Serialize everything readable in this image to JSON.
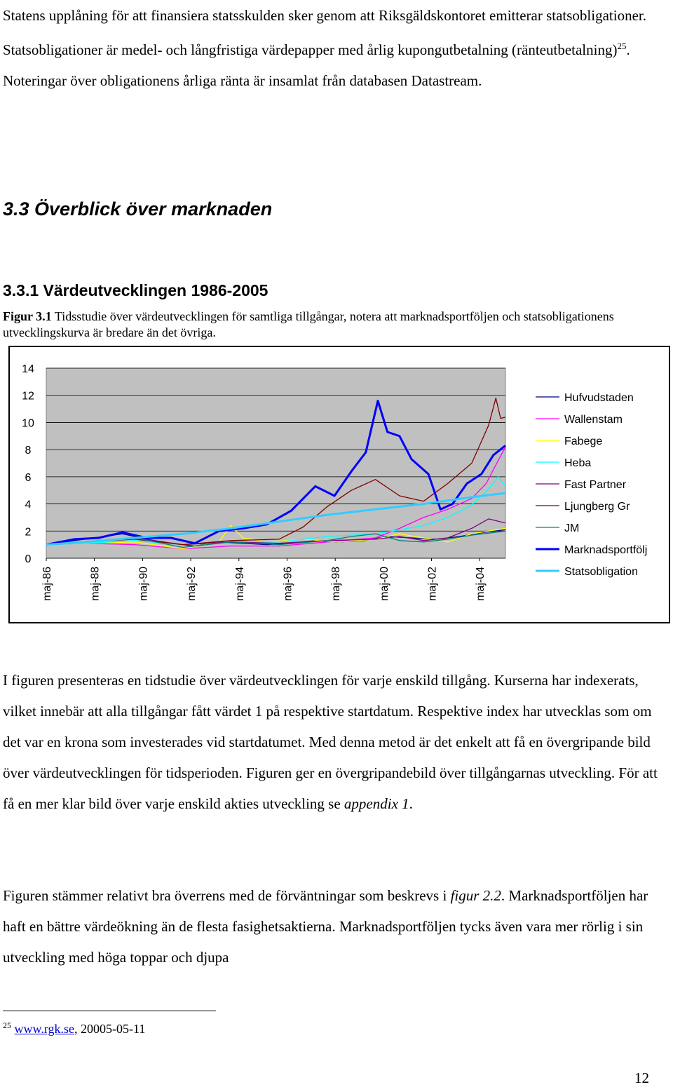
{
  "intro": {
    "text_before_sup": "Statens upplåning för att finansiera statsskulden sker genom att Riksgäldskontoret emitterar statsobligationer. Statsobligationer är medel- och långfristiga värdepapper med årlig kupongutbetalning (ränteutbetalning)",
    "sup": "25",
    "text_after_sup": ". Noteringar över obligationens årliga ränta är insamlat från databasen Datastream."
  },
  "section_heading": "3.3 Överblick över marknaden",
  "subsection_heading": "3.3.1 Värdeutvecklingen 1986-2005",
  "figure": {
    "label": "Figur 3.1",
    "caption": " Tidsstudie över värdeutvecklingen för samtliga tillgångar, notera att marknadsportföljen och statsobligationens utvecklingskurva är bredare än det övriga."
  },
  "chart_data": {
    "type": "line",
    "x_tick_labels": [
      "maj-86",
      "maj-88",
      "maj-90",
      "maj-92",
      "maj-94",
      "maj-96",
      "maj-98",
      "maj-00",
      "maj-02",
      "maj-04"
    ],
    "x_start_year": 1986.33,
    "x_end_year": 2005.4,
    "ylim": [
      0,
      14
    ],
    "y_ticks": [
      0,
      2,
      4,
      6,
      8,
      10,
      12,
      14
    ],
    "plot_background": "#c0c0c0",
    "grid": true,
    "legend_position": "right",
    "series": [
      {
        "name": "Hufvudstaden",
        "color": "#000080",
        "width": 1.3,
        "points": [
          [
            1986.33,
            1
          ],
          [
            1987.5,
            1.3
          ],
          [
            1988.3,
            1.5
          ],
          [
            1989.5,
            1.8
          ],
          [
            1990.5,
            1.4
          ],
          [
            1991.5,
            1.1
          ],
          [
            1992.5,
            0.9
          ],
          [
            1993.5,
            1.2
          ],
          [
            1994.5,
            1.1
          ],
          [
            1995.5,
            1.0
          ],
          [
            1996.5,
            1.1
          ],
          [
            1997.5,
            1.3
          ],
          [
            1998.5,
            1.2
          ],
          [
            1999.5,
            1.3
          ],
          [
            2000.5,
            1.6
          ],
          [
            2001.5,
            1.5
          ],
          [
            2002.5,
            1.4
          ],
          [
            2003.5,
            1.6
          ],
          [
            2004.5,
            1.9
          ],
          [
            2005.4,
            2.1
          ]
        ]
      },
      {
        "name": "Wallenstam",
        "color": "#ff00ff",
        "width": 1.3,
        "points": [
          [
            1986.33,
            1
          ],
          [
            1988,
            1.1
          ],
          [
            1990,
            1.0
          ],
          [
            1992,
            0.7
          ],
          [
            1994,
            0.9
          ],
          [
            1996,
            0.9
          ],
          [
            1998,
            1.2
          ],
          [
            2000,
            1.5
          ],
          [
            2001,
            2.2
          ],
          [
            2002,
            3.0
          ],
          [
            2003,
            3.6
          ],
          [
            2004,
            4.4
          ],
          [
            2004.6,
            5.5
          ],
          [
            2005.1,
            7.2
          ],
          [
            2005.4,
            8.2
          ]
        ]
      },
      {
        "name": "Fabege",
        "color": "#ffff00",
        "width": 1.3,
        "points": [
          [
            1986.33,
            1
          ],
          [
            1988,
            1.1
          ],
          [
            1990,
            1.2
          ],
          [
            1992,
            0.7
          ],
          [
            1993.5,
            1.2
          ],
          [
            1994,
            2.4
          ],
          [
            1994.5,
            1.5
          ],
          [
            1995.5,
            1.2
          ],
          [
            1997,
            1.4
          ],
          [
            1998.5,
            1.2
          ],
          [
            2000,
            1.4
          ],
          [
            2001,
            1.8
          ],
          [
            2002,
            1.5
          ],
          [
            2003,
            1.2
          ],
          [
            2004,
            1.8
          ],
          [
            2005.4,
            2.2
          ]
        ]
      },
      {
        "name": "Heba",
        "color": "#00ffff",
        "width": 1.3,
        "points": [
          [
            1986.33,
            1
          ],
          [
            1988,
            1.1
          ],
          [
            1990,
            1.3
          ],
          [
            1992,
            1.0
          ],
          [
            1994,
            1.2
          ],
          [
            1996,
            1.2
          ],
          [
            1998,
            1.6
          ],
          [
            2000,
            1.8
          ],
          [
            2001,
            2.1
          ],
          [
            2002,
            2.4
          ],
          [
            2003,
            3.0
          ],
          [
            2004,
            3.9
          ],
          [
            2004.7,
            5.1
          ],
          [
            2005.1,
            6.0
          ],
          [
            2005.4,
            5.3
          ]
        ]
      },
      {
        "name": "Fast Partner",
        "color": "#800080",
        "width": 1.3,
        "points": [
          [
            1986.33,
            1
          ],
          [
            1988,
            1.2
          ],
          [
            1990,
            1.5
          ],
          [
            1992,
            1.0
          ],
          [
            1994,
            1.2
          ],
          [
            1996,
            1.1
          ],
          [
            1998,
            1.3
          ],
          [
            2000,
            1.4
          ],
          [
            2001,
            1.6
          ],
          [
            2002,
            1.3
          ],
          [
            2003,
            1.5
          ],
          [
            2004,
            2.2
          ],
          [
            2004.7,
            2.9
          ],
          [
            2005.4,
            2.6
          ]
        ]
      },
      {
        "name": "Ljungberg Gr",
        "color": "#800000",
        "width": 1.3,
        "points": [
          [
            1986.33,
            1
          ],
          [
            1988,
            1.2
          ],
          [
            1990,
            1.4
          ],
          [
            1992,
            1.0
          ],
          [
            1994,
            1.3
          ],
          [
            1996,
            1.4
          ],
          [
            1997,
            2.3
          ],
          [
            1998,
            3.8
          ],
          [
            1999,
            5.0
          ],
          [
            2000,
            5.8
          ],
          [
            2001,
            4.6
          ],
          [
            2002,
            4.2
          ],
          [
            2003,
            5.5
          ],
          [
            2004,
            7.0
          ],
          [
            2004.7,
            9.8
          ],
          [
            2005.0,
            11.8
          ],
          [
            2005.2,
            10.3
          ],
          [
            2005.4,
            10.4
          ]
        ]
      },
      {
        "name": "JM",
        "color": "#008080",
        "width": 1.3,
        "points": [
          [
            1986.33,
            1
          ],
          [
            1988,
            1.2
          ],
          [
            1990,
            1.5
          ],
          [
            1992,
            0.8
          ],
          [
            1994,
            1.2
          ],
          [
            1996,
            1.0
          ],
          [
            1998,
            1.3
          ],
          [
            1999,
            1.6
          ],
          [
            2000,
            1.8
          ],
          [
            2001,
            1.3
          ],
          [
            2002,
            1.2
          ],
          [
            2003,
            1.4
          ],
          [
            2004,
            1.7
          ],
          [
            2005.4,
            2.0
          ]
        ]
      },
      {
        "name": "Marknadsportfölj",
        "color": "#0000ff",
        "width": 3,
        "points": [
          [
            1986.33,
            1
          ],
          [
            1987.5,
            1.4
          ],
          [
            1988.5,
            1.5
          ],
          [
            1989.5,
            1.9
          ],
          [
            1990.5,
            1.5
          ],
          [
            1991.5,
            1.5
          ],
          [
            1992.5,
            1.1
          ],
          [
            1993.5,
            2.0
          ],
          [
            1994.5,
            2.2
          ],
          [
            1995.5,
            2.5
          ],
          [
            1996.5,
            3.5
          ],
          [
            1997.5,
            5.3
          ],
          [
            1998.3,
            4.6
          ],
          [
            1999,
            6.4
          ],
          [
            1999.6,
            7.8
          ],
          [
            2000.1,
            11.6
          ],
          [
            2000.5,
            9.3
          ],
          [
            2001,
            9.0
          ],
          [
            2001.5,
            7.3
          ],
          [
            2002.2,
            6.2
          ],
          [
            2002.7,
            3.6
          ],
          [
            2003.2,
            4.0
          ],
          [
            2003.8,
            5.5
          ],
          [
            2004.4,
            6.2
          ],
          [
            2004.9,
            7.6
          ],
          [
            2005.4,
            8.3
          ]
        ]
      },
      {
        "name": "Statsobligation",
        "color": "#33ccff",
        "width": 3,
        "points": [
          [
            1986.33,
            1
          ],
          [
            1988,
            1.2
          ],
          [
            1990,
            1.5
          ],
          [
            1992,
            1.8
          ],
          [
            1994,
            2.2
          ],
          [
            1996,
            2.7
          ],
          [
            1998,
            3.2
          ],
          [
            2000,
            3.6
          ],
          [
            2002,
            4.0
          ],
          [
            2004,
            4.5
          ],
          [
            2005.4,
            4.8
          ]
        ]
      }
    ]
  },
  "body_paragraph_1": "I figuren presenteras en tidstudie över värdeutvecklingen för varje enskild tillgång. Kurserna har indexerats, vilket innebär att alla tillgångar fått värdet 1 på respektive startdatum. Respektive index har utvecklas som om det var en krona som investerades vid startdatumet. Med denna metod är det enkelt att få en övergripande bild över värdeutvecklingen för tidsperioden. Figuren ger en övergripandebild över tillgångarnas utveckling. För att få en mer klar bild över varje enskild akties utveckling se ",
  "body_paragraph_1_italic": "appendix 1",
  "body_paragraph_1_end": ".",
  "body_paragraph_2": "Figuren stämmer relativt bra överrens med de förväntningar som beskrevs i ",
  "body_paragraph_2_italic": "figur 2.2",
  "body_paragraph_2_end": ". Marknadsportföljen har haft en bättre värdeökning än de flesta fasighetsaktierna. Marknadsportföljen tycks även vara mer rörlig i sin utveckling med höga toppar och djupa",
  "footnote": {
    "number": "25",
    "link": "www.rgk.se",
    "rest": ", 20005-05-11"
  },
  "page_number": "12"
}
